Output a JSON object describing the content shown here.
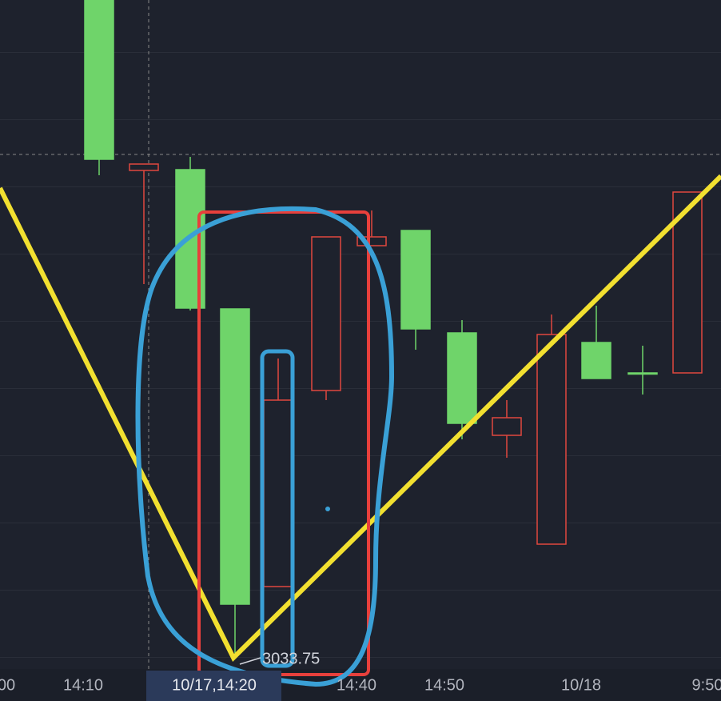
{
  "chart_data": {
    "type": "candlestick",
    "categories": [
      null,
      null,
      null,
      null,
      null,
      null,
      null,
      null,
      null,
      null,
      null,
      null,
      null,
      null
    ],
    "open": [
      3095.7,
      3095.1,
      3077.1,
      3040.1,
      3065.6,
      3086.0,
      3086.0,
      3074.5,
      3062.7,
      3063.4,
      3073.8,
      3068.3,
      3069.0,
      3091.6
    ],
    "high": [
      3121.0,
      3095.1,
      3096.0,
      3077.0,
      3070.8,
      3086.0,
      3089.3,
      3086.8,
      3075.6,
      3065.6,
      3076.3,
      3077.4,
      3072.4,
      3091.6
    ],
    "low": [
      3093.7,
      3080.1,
      3076.8,
      3034.0,
      3042.3,
      3065.6,
      3084.9,
      3071.9,
      3060.7,
      3058.4,
      3047.6,
      3068.3,
      3066.3,
      3069.0
    ],
    "close": [
      3120.0,
      3094.3,
      3094.4,
      3077.0,
      3042.3,
      3066.8,
      3084.9,
      3086.8,
      3074.0,
      3061.2,
      3047.6,
      3072.8,
      3069.0,
      3069.0
    ],
    "up_color": "#6fd46a",
    "down_color": "#e0473f",
    "ylim": [
      3032,
      3115.6
    ],
    "x_labels": [
      "00",
      "14:10",
      "14:40",
      "14:50",
      "10/18",
      "9:50"
    ],
    "crosshair_label": "10/17,14:20",
    "price_annotation": "3033.75"
  }
}
